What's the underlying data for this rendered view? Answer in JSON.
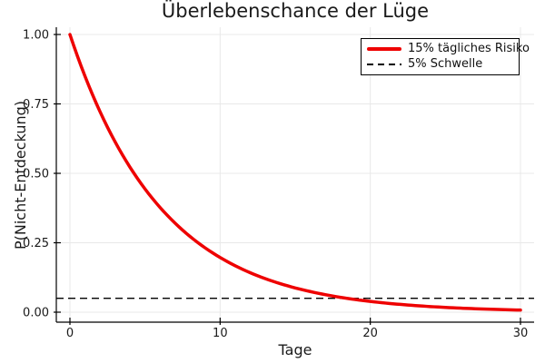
{
  "page": {
    "background": "#ffffff"
  },
  "chart_data": {
    "type": "line",
    "title": "Überlebenschance der Lüge",
    "xlabel": "Tage",
    "ylabel": "P(Nicht-Entdeckung)",
    "xlim": [
      0,
      30
    ],
    "ylim": [
      0,
      1.0
    ],
    "grid": true,
    "legend_position": "top-right",
    "x_ticks": {
      "values": [
        0,
        10,
        20,
        30
      ],
      "labels": [
        "0",
        "10",
        "20",
        "30"
      ]
    },
    "y_ticks": {
      "values": [
        0,
        0.25,
        0.5,
        0.75,
        1.0
      ],
      "labels": [
        "0.00",
        "0.25",
        "0.50",
        "0.75",
        "1.00"
      ]
    },
    "series": [
      {
        "name": "15% tägliches Risiko",
        "type": "line",
        "line_style": "solid",
        "color": "#ee0000",
        "line_width": 3.5,
        "x": [
          0,
          1,
          2,
          3,
          4,
          5,
          6,
          7,
          8,
          9,
          10,
          11,
          12,
          13,
          14,
          15,
          16,
          17,
          18,
          19,
          20,
          21,
          22,
          23,
          24,
          25,
          26,
          27,
          28,
          29,
          30
        ],
        "y": [
          1.0,
          0.85,
          0.7225,
          0.6141,
          0.522,
          0.4437,
          0.3771,
          0.3206,
          0.2725,
          0.2316,
          0.1969,
          0.1673,
          0.1422,
          0.1209,
          0.1028,
          0.0874,
          0.0743,
          0.0631,
          0.0536,
          0.0456,
          0.0388,
          0.0329,
          0.028,
          0.0238,
          0.0202,
          0.0172,
          0.0146,
          0.0124,
          0.0106,
          0.009,
          0.0076
        ]
      },
      {
        "name": "5% Schwelle",
        "type": "hline",
        "line_style": "dashed",
        "color": "#000000",
        "line_width": 1.3,
        "y_const": 0.05
      }
    ],
    "colors": {
      "grid": "#e8e8e8",
      "axis": "#000000",
      "text": "#1a1a1a"
    }
  }
}
